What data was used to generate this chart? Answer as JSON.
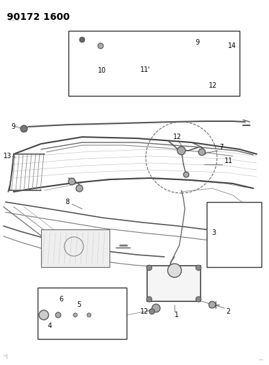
{
  "title": "90172 1600",
  "bg_color": "#ffffff",
  "title_fontsize": 10,
  "fig_width": 3.93,
  "fig_height": 5.33,
  "dpi": 100,
  "line_color": "#444444",
  "light_color": "#888888",
  "dark_color": "#222222"
}
